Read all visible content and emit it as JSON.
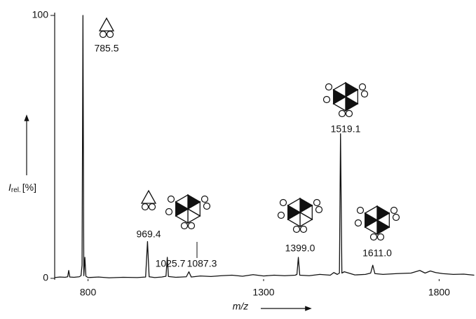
{
  "chart_data": {
    "type": "line",
    "xlabel": "m/z",
    "ylabel": {
      "symbol": "I",
      "subscript": "rel.",
      "unit": "[%]"
    },
    "x": [
      705,
      720,
      735,
      742,
      745,
      748,
      760,
      775,
      780,
      783,
      785.5,
      788,
      791,
      794,
      800,
      830,
      860,
      900,
      940,
      964,
      969.4,
      974,
      990,
      1010,
      1022,
      1025.7,
      1029,
      1050,
      1080,
      1087.3,
      1094,
      1120,
      1150,
      1180,
      1210,
      1240,
      1270,
      1300,
      1330,
      1360,
      1390,
      1395,
      1399,
      1403,
      1430,
      1460,
      1490,
      1500,
      1510,
      1516,
      1519.1,
      1523,
      1530,
      1560,
      1590,
      1605,
      1611,
      1617,
      1640,
      1680,
      1720,
      1745,
      1760,
      1775,
      1790,
      1810,
      1840,
      1870,
      1900
    ],
    "values": [
      0.3,
      0.5,
      0.4,
      0.6,
      3,
      0.5,
      0.4,
      0.6,
      1,
      5,
      100,
      1,
      8,
      0.8,
      0.3,
      0.5,
      0.2,
      0.4,
      0.3,
      0.5,
      14,
      0.6,
      0.3,
      0.5,
      0.8,
      8,
      0.7,
      0.4,
      0.6,
      2.5,
      0.5,
      0.9,
      0.7,
      1,
      1.2,
      0.8,
      1.4,
      0.9,
      1.2,
      1,
      1.2,
      1.5,
      8,
      1.2,
      1,
      1.5,
      1.2,
      2.2,
      1.5,
      2,
      55,
      2,
      2.5,
      1.3,
      1.5,
      2,
      5,
      1.8,
      1.5,
      1.8,
      2,
      3,
      2,
      2.8,
      2.2,
      1.8,
      1.5,
      1.6,
      1.2
    ],
    "color": "#111111",
    "annotations": [
      {
        "x": 785.5,
        "label": "785.5"
      },
      {
        "x": 969.4,
        "label": "969.4"
      },
      {
        "x": 1025.7,
        "label": "1025.7"
      },
      {
        "x": 1087.3,
        "label": "1087.3"
      },
      {
        "x": 1399.0,
        "label": "1399.0"
      },
      {
        "x": 1519.1,
        "label": "1519.1"
      },
      {
        "x": 1611.0,
        "label": "1611.0"
      }
    ],
    "xlim": [
      705,
      1905
    ],
    "ylim": [
      0,
      100
    ],
    "xticks": [
      800,
      1300,
      1800
    ],
    "yticks": [
      0,
      100
    ],
    "grid": false
  }
}
